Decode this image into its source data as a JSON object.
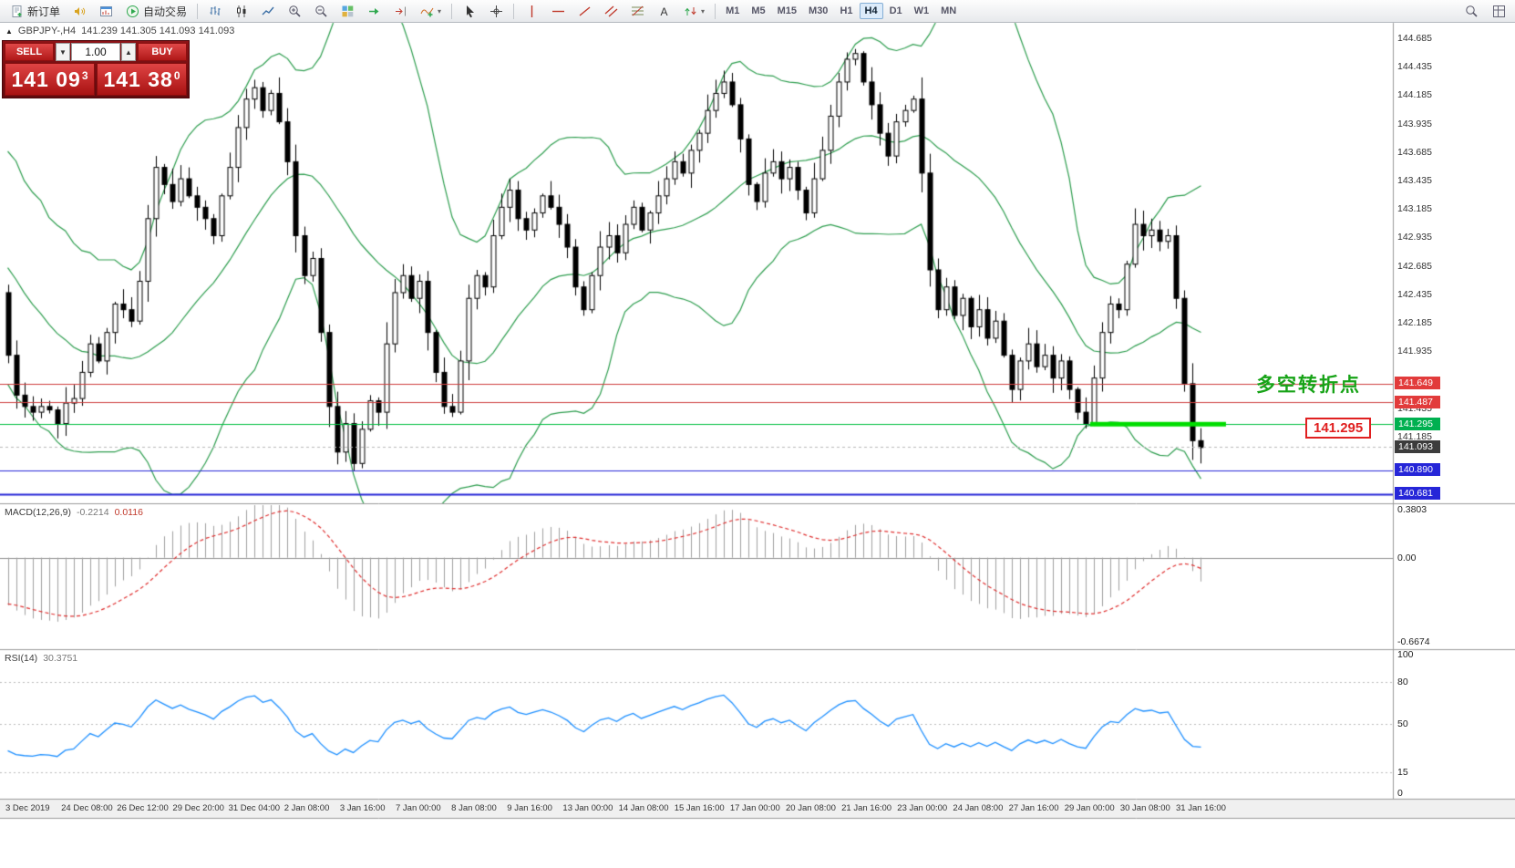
{
  "toolbar": {
    "new_order": "新订单",
    "auto_trading": "自动交易",
    "timeframes": [
      "M1",
      "M5",
      "M15",
      "M30",
      "H1",
      "H4",
      "D1",
      "W1",
      "MN"
    ],
    "active_timeframe": "H4"
  },
  "symbol_bar": {
    "symbol": "GBPJPY-,H4",
    "ohlc": "141.239 141.305 141.093 141.093"
  },
  "trade_panel": {
    "sell_label": "SELL",
    "buy_label": "BUY",
    "volume": "1.00",
    "sell_price_main": "141 09",
    "sell_price_sup": "3",
    "buy_price_main": "141 38",
    "buy_price_sup": "0"
  },
  "annotation": {
    "text": "多空转折点",
    "color": "#17a317"
  },
  "price_flag": {
    "text": "141.295"
  },
  "macd": {
    "header": "MACD(12,26,9)",
    "value1": "-0.2214",
    "value2": "0.0116",
    "scale_top": "0.3803",
    "scale_zero": "0.00",
    "scale_bottom": "-0.6674"
  },
  "rsi": {
    "header": "RSI(14)",
    "value": "30.3751",
    "scale": [
      "100",
      "80",
      "50",
      "15",
      "0"
    ]
  },
  "price_scale": {
    "ticks": [
      "144.685",
      "144.435",
      "144.185",
      "143.935",
      "143.685",
      "143.435",
      "143.185",
      "142.935",
      "142.685",
      "142.435",
      "142.185",
      "141.935",
      "141.685",
      "141.435",
      "141.185",
      "140.935",
      "140.685"
    ],
    "badges": [
      {
        "text": "141.649",
        "price": 141.649,
        "bg": "#e23b3b"
      },
      {
        "text": "141.487",
        "price": 141.487,
        "bg": "#e23b3b"
      },
      {
        "text": "141.295",
        "price": 141.295,
        "bg": "#00b050"
      },
      {
        "text": "141.093",
        "price": 141.093,
        "bg": "#3c3c3c"
      },
      {
        "text": "140.890",
        "price": 140.89,
        "bg": "#2626d8"
      },
      {
        "text": "140.681",
        "price": 140.681,
        "bg": "#2626d8"
      }
    ]
  },
  "time_axis": [
    "3 Dec 2019",
    "24 Dec 08:00",
    "26 Dec 12:00",
    "29 Dec 20:00",
    "31 Dec 04:00",
    "2 Jan 08:00",
    "3 Jan 16:00",
    "7 Jan 00:00",
    "8 Jan 08:00",
    "9 Jan 16:00",
    "13 Jan 00:00",
    "14 Jan 08:00",
    "15 Jan 16:00",
    "17 Jan 00:00",
    "20 Jan 08:00",
    "21 Jan 16:00",
    "23 Jan 00:00",
    "24 Jan 08:00",
    "27 Jan 16:00",
    "29 Jan 00:00",
    "30 Jan 08:00",
    "31 Jan 16:00"
  ],
  "chart_data": {
    "type": "candlestick",
    "symbol": "GBPJPY-",
    "timeframe": "H4",
    "price_min": 140.6,
    "price_max": 144.82,
    "first_open": 142.45,
    "pre_closes": [
      143.9,
      143.6,
      143.8,
      143.4,
      143.1,
      143.3,
      142.9,
      142.6,
      142.8,
      142.5,
      142.2,
      142.45,
      142.1,
      142.35,
      142.6,
      142.4,
      142.15,
      142.3,
      142.5,
      142.42
    ],
    "closes": [
      141.9,
      141.55,
      141.45,
      141.4,
      141.45,
      141.42,
      141.3,
      141.48,
      141.52,
      141.75,
      142.0,
      141.85,
      142.1,
      142.35,
      142.3,
      142.2,
      142.55,
      143.1,
      143.55,
      143.4,
      143.25,
      143.45,
      143.3,
      143.2,
      143.1,
      142.95,
      143.3,
      143.55,
      143.9,
      144.15,
      144.25,
      144.05,
      144.2,
      143.95,
      143.6,
      142.95,
      142.6,
      142.75,
      142.1,
      141.45,
      141.05,
      141.3,
      140.95,
      141.25,
      141.5,
      141.4,
      142.0,
      142.45,
      142.6,
      142.4,
      142.55,
      142.1,
      141.75,
      141.45,
      141.4,
      141.85,
      142.4,
      142.6,
      142.5,
      142.95,
      143.2,
      143.35,
      143.1,
      143.0,
      143.15,
      143.3,
      143.2,
      143.05,
      142.85,
      142.5,
      142.3,
      142.6,
      142.85,
      142.95,
      142.8,
      143.05,
      143.2,
      143.0,
      143.15,
      143.3,
      143.45,
      143.6,
      143.5,
      143.7,
      143.85,
      144.05,
      144.2,
      144.3,
      144.1,
      143.8,
      143.4,
      143.25,
      143.5,
      143.6,
      143.45,
      143.55,
      143.35,
      143.15,
      143.45,
      143.7,
      144.0,
      144.3,
      144.5,
      144.55,
      144.3,
      144.1,
      143.85,
      143.65,
      143.95,
      144.05,
      144.15,
      143.5,
      142.65,
      142.3,
      142.5,
      142.25,
      142.4,
      142.15,
      142.3,
      142.05,
      142.2,
      141.9,
      141.6,
      141.85,
      142.0,
      141.8,
      141.9,
      141.7,
      141.85,
      141.6,
      141.4,
      141.3,
      141.7,
      142.1,
      142.35,
      142.3,
      142.7,
      143.05,
      142.95,
      143.0,
      142.9,
      142.95,
      142.4,
      141.65,
      141.15,
      141.09
    ],
    "bollinger": {
      "period": 20,
      "deviation": 2,
      "color": "#2e9e4f"
    },
    "hlines": [
      {
        "price": 141.649,
        "color": "#d04040",
        "width": 1,
        "style": "solid"
      },
      {
        "price": 141.487,
        "color": "#d04040",
        "width": 1,
        "style": "solid"
      },
      {
        "price": 141.295,
        "color": "#00c040",
        "width": 1,
        "style": "solid"
      },
      {
        "price": 141.093,
        "color": "#b8b8b8",
        "width": 1,
        "style": "dash"
      },
      {
        "price": 140.89,
        "color": "#2626d8",
        "width": 1,
        "style": "solid"
      },
      {
        "price": 140.681,
        "color": "#2626d8",
        "width": 2,
        "style": "solid"
      }
    ],
    "thick_segment": {
      "price": 141.295,
      "x_start_frac": 0.7827,
      "x_end_frac": 0.8802,
      "color": "#00dd00",
      "width": 5
    },
    "macd_cfg": {
      "fast": 12,
      "slow": 26,
      "signal": 9,
      "bar_color": "#a0a0a0",
      "signal_color": "#e03030",
      "y_top": 0.3803,
      "y_bottom": -0.6674
    },
    "rsi_cfg": {
      "period": 14,
      "color": "#1e90ff",
      "levels": [
        80,
        50,
        15
      ]
    },
    "candle_bull_fill": "#ffffff",
    "candle_bear_fill": "#000000",
    "candle_border": "#000000"
  }
}
